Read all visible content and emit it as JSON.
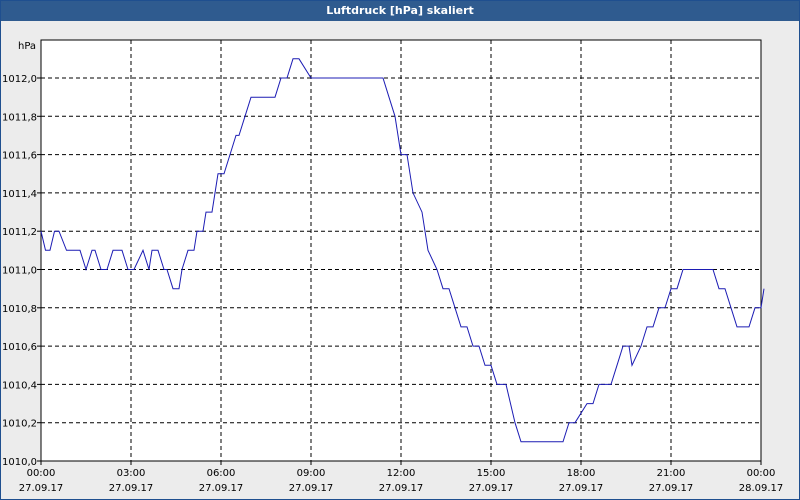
{
  "window": {
    "title": "Luftdruck [hPa] skaliert"
  },
  "chart_data": {
    "type": "line",
    "title": "Luftdruck [hPa] skaliert",
    "ylabel": "hPa",
    "xlabel": "",
    "ylim": [
      1010.0,
      1012.2
    ],
    "xlim_hours": [
      0,
      24
    ],
    "grid": true,
    "legend": "none",
    "line_color": "#1c1cb4",
    "y_ticks": [
      "1010,0",
      "1010,2",
      "1010,4",
      "1010,6",
      "1010,8",
      "1011,0",
      "1011,2",
      "1011,4",
      "1011,6",
      "1011,8",
      "1012,0"
    ],
    "x_ticks": [
      {
        "time": "00:00",
        "date": "27.09.17"
      },
      {
        "time": "03:00",
        "date": "27.09.17"
      },
      {
        "time": "06:00",
        "date": "27.09.17"
      },
      {
        "time": "09:00",
        "date": "27.09.17"
      },
      {
        "time": "12:00",
        "date": "27.09.17"
      },
      {
        "time": "15:00",
        "date": "27.09.17"
      },
      {
        "time": "18:00",
        "date": "27.09.17"
      },
      {
        "time": "21:00",
        "date": "27.09.17"
      },
      {
        "time": "00:00",
        "date": "28.09.17"
      }
    ],
    "series": [
      {
        "x": [
          0.0,
          0.15,
          0.3,
          0.45,
          0.6,
          0.85,
          1.0,
          1.1,
          1.3,
          1.5,
          1.7,
          1.8,
          2.0,
          2.2,
          2.4,
          2.5,
          2.7,
          2.9,
          3.0,
          3.1,
          3.4,
          3.6,
          3.7,
          3.9,
          4.1,
          4.2,
          4.4,
          4.6,
          4.7,
          4.9,
          5.1,
          5.2,
          5.4,
          5.5,
          5.7,
          5.9,
          6.1,
          6.3,
          6.5,
          6.6,
          6.8,
          7.0,
          7.2,
          7.4,
          7.6,
          7.8,
          8.0,
          8.2,
          8.4,
          8.6,
          9.0,
          9.3,
          9.5,
          9.8,
          10.2,
          10.8,
          11.4,
          11.6,
          11.8,
          12.0,
          12.2,
          12.4,
          12.7,
          12.9,
          13.2,
          13.4,
          13.6,
          13.8,
          14.0,
          14.2,
          14.4,
          14.6,
          14.8,
          15.0,
          15.2,
          15.5,
          15.8,
          16.0,
          16.5,
          17.0,
          17.4,
          17.6,
          17.8,
          18.2,
          18.4,
          18.6,
          19.0,
          19.2,
          19.4,
          19.6,
          19.7,
          20.0,
          20.2,
          20.4,
          20.6,
          20.8,
          21.0,
          21.2,
          21.4,
          21.6,
          21.8,
          22.0,
          22.2,
          22.4,
          22.6,
          22.8,
          23.0,
          23.2,
          23.4,
          23.6,
          23.8,
          24.0,
          24.1
        ],
        "y": [
          1011.2,
          1011.1,
          1011.1,
          1011.2,
          1011.2,
          1011.1,
          1011.1,
          1011.1,
          1011.1,
          1011.0,
          1011.1,
          1011.1,
          1011.0,
          1011.0,
          1011.1,
          1011.1,
          1011.1,
          1011.0,
          1011.0,
          1011.0,
          1011.1,
          1011.0,
          1011.1,
          1011.1,
          1011.0,
          1011.0,
          1010.9,
          1010.9,
          1011.0,
          1011.1,
          1011.1,
          1011.2,
          1011.2,
          1011.3,
          1011.3,
          1011.5,
          1011.5,
          1011.6,
          1011.7,
          1011.7,
          1011.8,
          1011.9,
          1011.9,
          1011.9,
          1011.9,
          1011.9,
          1012.0,
          1012.0,
          1012.1,
          1012.1,
          1012.0,
          1012.0,
          1012.0,
          1012.0,
          1012.0,
          1012.0,
          1012.0,
          1011.9,
          1011.8,
          1011.6,
          1011.6,
          1011.4,
          1011.3,
          1011.1,
          1011.0,
          1010.9,
          1010.9,
          1010.8,
          1010.7,
          1010.7,
          1010.6,
          1010.6,
          1010.5,
          1010.5,
          1010.4,
          1010.4,
          1010.2,
          1010.1,
          1010.1,
          1010.1,
          1010.1,
          1010.2,
          1010.2,
          1010.3,
          1010.3,
          1010.4,
          1010.4,
          1010.5,
          1010.6,
          1010.6,
          1010.5,
          1010.6,
          1010.7,
          1010.7,
          1010.8,
          1010.8,
          1010.9,
          1010.9,
          1011.0,
          1011.0,
          1011.0,
          1011.0,
          1011.0,
          1011.0,
          1010.9,
          1010.9,
          1010.8,
          1010.7,
          1010.7,
          1010.7,
          1010.8,
          1010.8,
          1010.9
        ]
      }
    ]
  }
}
